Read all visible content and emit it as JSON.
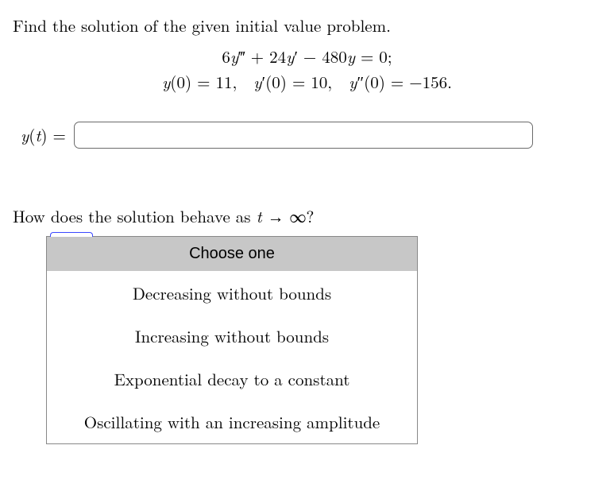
{
  "prompt": "Find the solution of the given initial value problem.",
  "equation": {
    "line1_html": "6<span class='math-it'>y</span><span class='prime'>‴</span> + 24<span class='math-it'>y</span><span class='prime'>′</span> − 480<span class='math-it'>y</span> = 0;",
    "line2_html": "<span class='math-it'>y</span>(0) = 11,&nbsp;&nbsp;<span class='math-it'>y</span><span class='prime'>′</span>(0) = 10,&nbsp;&nbsp;<span class='math-it'>y</span><span class='prime'>″</span>(0) = −156."
  },
  "answer": {
    "label_html": "<span class='math-it'>y</span>(<span class='math-it'>t</span>) =",
    "value": "",
    "placeholder": ""
  },
  "behavior": {
    "prompt_html": "How does the solution behave as <span class='math-it'>t</span> <span class='arrow'>→</span> ∞?",
    "selected": "Choose one",
    "options": [
      "Decreasing without bounds",
      "Increasing without bounds",
      "Exponential decay to a constant",
      "Oscillating with an increasing amplitude"
    ]
  },
  "colors": {
    "background": "#ffffff",
    "text": "#000000",
    "select_head_bg": "#c7c7c7",
    "select_border": "#888888",
    "input_border": "#6b6b6b",
    "tab_border": "#3a48ff"
  }
}
